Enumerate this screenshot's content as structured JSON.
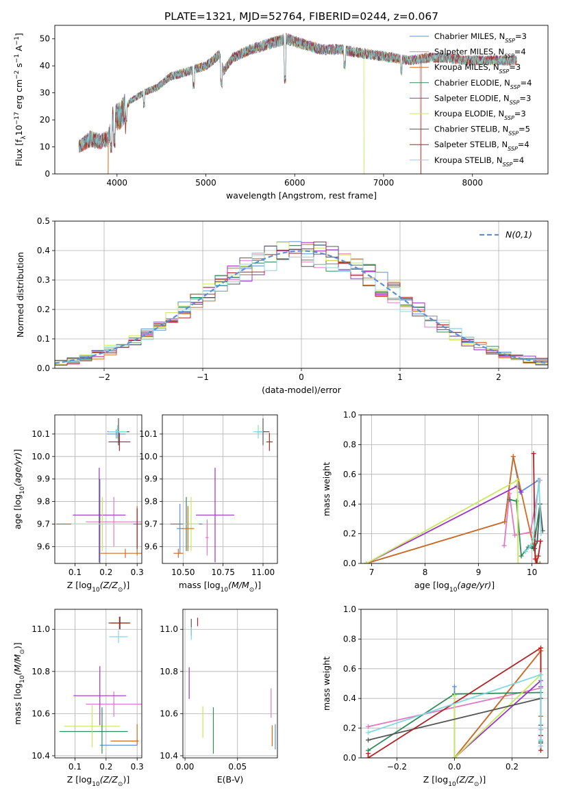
{
  "figure_title": "PLATE=1321, MJD=52764, FIBERID=0244, z=0.067",
  "colors": {
    "c1": "#5a8fd6",
    "c2": "#e377c2",
    "c3": "#d2691e",
    "c4": "#2e8b57",
    "c5": "#9b30c9",
    "c6": "#c7e85a",
    "c7": "#555555",
    "c8": "#b22222",
    "c9": "#80d8e0",
    "gauss": "#5a8fd6"
  },
  "series": [
    {
      "name": "Chabrier MILES",
      "nssp": "3",
      "color": "#5a8fd6"
    },
    {
      "name": "Salpeter MILES",
      "nssp": "4",
      "color": "#e377c2"
    },
    {
      "name": "Kroupa MILES",
      "nssp": "3",
      "color": "#d2691e"
    },
    {
      "name": "Chabrier ELODIE",
      "nssp": "4",
      "color": "#2e8b57"
    },
    {
      "name": "Salpeter ELODIE",
      "nssp": "3",
      "color": "#9b30c9"
    },
    {
      "name": "Kroupa ELODIE",
      "nssp": "3",
      "color": "#c7e85a"
    },
    {
      "name": "Chabrier STELIB",
      "nssp": "5",
      "color": "#555555"
    },
    {
      "name": "Salpeter STELIB",
      "nssp": "4",
      "color": "#b22222"
    },
    {
      "name": "Kroupa STELIB",
      "nssp": "4",
      "color": "#80d8e0"
    }
  ],
  "chart_data": [
    {
      "id": "spectrum",
      "type": "line",
      "xlabel": "wavelength [Angstrom, rest frame]",
      "ylabel": "Flux [f",
      "xlim": [
        3300,
        8850
      ],
      "ylim": [
        0,
        55
      ],
      "xticks": [
        4000,
        5000,
        6000,
        7000,
        8000
      ],
      "yticks": [
        0,
        10,
        20,
        30,
        40,
        50
      ],
      "grid": false,
      "legend": "top-right",
      "continuum": [
        [
          3570,
          10
        ],
        [
          3700,
          13
        ],
        [
          3800,
          12
        ],
        [
          3900,
          13
        ],
        [
          3950,
          20
        ],
        [
          4050,
          22
        ],
        [
          4150,
          27
        ],
        [
          4300,
          30
        ],
        [
          4450,
          32
        ],
        [
          4600,
          36
        ],
        [
          4800,
          38
        ],
        [
          5000,
          40
        ],
        [
          5150,
          44
        ],
        [
          5200,
          38
        ],
        [
          5300,
          43
        ],
        [
          5500,
          46
        ],
        [
          5700,
          48
        ],
        [
          5900,
          50
        ],
        [
          6100,
          48
        ],
        [
          6300,
          46
        ],
        [
          6500,
          46
        ],
        [
          6700,
          45
        ],
        [
          6900,
          44
        ],
        [
          7100,
          43
        ],
        [
          7300,
          42
        ],
        [
          7500,
          43
        ],
        [
          7700,
          43
        ],
        [
          7900,
          42
        ],
        [
          8100,
          42
        ],
        [
          8300,
          42
        ],
        [
          8500,
          42
        ]
      ],
      "dropouts": [
        {
          "series": 2,
          "x": 3900
        },
        {
          "series": 5,
          "x": 6780
        },
        {
          "series": 7,
          "x": 7420
        }
      ]
    },
    {
      "id": "residuals",
      "type": "bar",
      "xlabel": "(data-model)/error",
      "ylabel": "Normed distribution",
      "xlim": [
        -2.5,
        2.5
      ],
      "ylim": [
        0,
        0.5
      ],
      "xticks": [
        -2,
        -1,
        0,
        1,
        2
      ],
      "yticks": [
        0,
        0.1,
        0.2,
        0.3,
        0.4,
        0.5
      ],
      "grid": true,
      "legend": "top-right",
      "gauss_label": "N(0,1)"
    },
    {
      "id": "age_vs_Z",
      "type": "scatter",
      "xlabel": "Z [log",
      "ylabel": "age  [log",
      "xlim": [
        0.035,
        0.315
      ],
      "ylim": [
        9.525,
        10.185
      ],
      "xticks": [
        0.1,
        0.2,
        0.3
      ],
      "yticks": [
        9.6,
        9.7,
        9.8,
        9.9,
        10.0,
        10.1
      ],
      "grid": true,
      "points": [
        {
          "s": 0,
          "x": 0.233,
          "y": 10.1,
          "ex": 0.03,
          "ey": 0.02
        },
        {
          "s": 1,
          "x": 0.225,
          "y": 9.71,
          "ex": 0.09,
          "ey": 0.11
        },
        {
          "s": 2,
          "x": 0.262,
          "y": 9.57,
          "ex": 0.08,
          "ey": 0.02
        },
        {
          "s": 3,
          "x": 0.18,
          "y": 9.7,
          "ex": 0.14,
          "ey": 0.2
        },
        {
          "s": 4,
          "x": 0.178,
          "y": 9.74,
          "ex": 0.085,
          "ey": 0.21
        },
        {
          "s": 5,
          "x": 0.188,
          "y": 9.7,
          "ex": 0.1,
          "ey": 0.12
        },
        {
          "s": 6,
          "x": 0.24,
          "y": 10.11,
          "ex": 0.035,
          "ey": 0.06
        },
        {
          "s": 7,
          "x": 0.243,
          "y": 10.065,
          "ex": 0.035,
          "ey": 0.04
        },
        {
          "s": 8,
          "x": 0.237,
          "y": 10.11,
          "ex": 0.03,
          "ey": 0.03
        },
        {
          "s": 2,
          "x": 0.3,
          "y": 9.67,
          "ex": 0.0,
          "ey": 0.11
        },
        {
          "s": 7,
          "x": 0.3,
          "y": 9.68,
          "ex": 0.0,
          "ey": 0.09
        }
      ]
    },
    {
      "id": "age_vs_mass",
      "type": "scatter",
      "xlabel": "mass [log",
      "ylabel": "",
      "xlim": [
        10.37,
        11.09
      ],
      "ylim": [
        9.525,
        10.185
      ],
      "xticks": [
        10.5,
        10.75,
        11.0
      ],
      "yticks": [
        9.6,
        9.7,
        9.8,
        9.9,
        10.0,
        10.1
      ],
      "grid": true,
      "points": [
        {
          "s": 0,
          "x": 10.48,
          "y": 9.68,
          "ex": 0.02,
          "ey": 0.11
        },
        {
          "s": 1,
          "x": 10.65,
          "y": 9.64,
          "ex": 0.01,
          "ey": 0.08
        },
        {
          "s": 2,
          "x": 10.47,
          "y": 9.57,
          "ex": 0.03,
          "ey": 0.02
        },
        {
          "s": 3,
          "x": 10.52,
          "y": 9.7,
          "ex": 0.1,
          "ey": 0.12
        },
        {
          "s": 4,
          "x": 10.7,
          "y": 9.74,
          "ex": 0.12,
          "ey": 0.21
        },
        {
          "s": 5,
          "x": 10.55,
          "y": 9.7,
          "ex": 0.05,
          "ey": 0.12
        },
        {
          "s": 6,
          "x": 11.0,
          "y": 10.11,
          "ex": 0.04,
          "ey": 0.06
        },
        {
          "s": 7,
          "x": 11.04,
          "y": 10.065,
          "ex": 0.02,
          "ey": 0.04
        },
        {
          "s": 8,
          "x": 10.97,
          "y": 10.11,
          "ex": 0.03,
          "ey": 0.03
        },
        {
          "s": 2,
          "x": 10.53,
          "y": 9.68,
          "ex": 0.04,
          "ey": 0.1
        }
      ]
    },
    {
      "id": "weight_vs_age",
      "type": "line",
      "xlabel": "age  [log",
      "ylabel": "mass weight",
      "xlim": [
        6.8,
        10.3
      ],
      "ylim": [
        0,
        1
      ],
      "xticks": [
        7,
        8,
        9,
        10
      ],
      "yticks": [
        0.0,
        0.2,
        0.4,
        0.6,
        0.8,
        1.0
      ],
      "grid": true,
      "lines": [
        {
          "s": 0,
          "x": [
            6.9,
            9.49,
            9.65,
            9.78,
            10.12
          ],
          "y": [
            0.0,
            0.28,
            0.72,
            0.48,
            0.56
          ]
        },
        {
          "s": 1,
          "x": [
            9.48,
            9.58,
            9.68,
            9.97,
            10.15
          ],
          "y": [
            0.12,
            0.47,
            0.19,
            0.21,
            0.56
          ]
        },
        {
          "s": 2,
          "x": [
            6.9,
            9.49,
            9.65,
            10.1,
            10.15
          ],
          "y": [
            0.0,
            0.28,
            0.72,
            0.0,
            0.0
          ]
        },
        {
          "s": 3,
          "x": [
            9.58,
            9.71,
            9.8,
            9.93,
            10.03,
            10.15
          ],
          "y": [
            0.43,
            0.42,
            0.05,
            0.11,
            0.1,
            0.4
          ]
        },
        {
          "s": 4,
          "x": [
            6.9,
            9.72,
            9.8
          ],
          "y": [
            0.0,
            0.52,
            0.48
          ]
        },
        {
          "s": 5,
          "x": [
            6.9,
            9.73,
            9.74
          ],
          "y": [
            0.0,
            0.56,
            0.0
          ]
        },
        {
          "s": 6,
          "x": [
            9.98,
            10.05,
            10.1,
            10.15,
            10.2
          ],
          "y": [
            0.12,
            0.1,
            0.15,
            0.4,
            0.22
          ]
        },
        {
          "s": 7,
          "x": [
            10.03,
            10.06,
            10.08,
            10.12,
            10.16
          ],
          "y": [
            0.74,
            0.03,
            0.0,
            0.05,
            0.15
          ]
        },
        {
          "s": 8,
          "x": [
            9.88,
            9.98,
            10.03,
            10.13,
            10.17
          ],
          "y": [
            0.08,
            0.12,
            0.17,
            0.56,
            0.2
          ]
        }
      ]
    },
    {
      "id": "mass_vs_Z",
      "type": "scatter",
      "xlabel": "Z [log",
      "ylabel": "mass [log",
      "xlim": [
        0.035,
        0.315
      ],
      "ylim": [
        10.39,
        11.095
      ],
      "xticks": [
        0.1,
        0.2,
        0.3
      ],
      "yticks": [
        10.4,
        10.6,
        10.8,
        11.0
      ],
      "grid": true,
      "points": [
        {
          "s": 0,
          "x": 0.24,
          "y": 10.45,
          "ex": 0.06,
          "ey": 0.0
        },
        {
          "s": 1,
          "x": 0.225,
          "y": 10.645,
          "ex": 0.09,
          "ey": 0.06
        },
        {
          "s": 2,
          "x": 0.3,
          "y": 10.5,
          "ex": 0.0,
          "ey": 0.05
        },
        {
          "s": 3,
          "x": 0.16,
          "y": 10.515,
          "ex": 0.11,
          "ey": 0.0
        },
        {
          "s": 4,
          "x": 0.18,
          "y": 10.685,
          "ex": 0.085,
          "ey": 0.14
        },
        {
          "s": 5,
          "x": 0.155,
          "y": 10.54,
          "ex": 0.09,
          "ey": 0.1
        },
        {
          "s": 6,
          "x": 0.245,
          "y": 11.03,
          "ex": 0.03,
          "ey": 0.03
        },
        {
          "s": 7,
          "x": 0.243,
          "y": 11.03,
          "ex": 0.035,
          "ey": 0.03
        },
        {
          "s": 8,
          "x": 0.24,
          "y": 10.965,
          "ex": 0.03,
          "ey": 0.03
        },
        {
          "s": 2,
          "x": 0.26,
          "y": 10.47,
          "ex": 0.045,
          "ey": 0.0
        },
        {
          "s": 3,
          "x": 0.187,
          "y": 10.52,
          "ex": 0.0,
          "ey": 0.11
        }
      ]
    },
    {
      "id": "mass_vs_ebv",
      "type": "scatter",
      "xlabel": "E(B-V)",
      "ylabel": "",
      "xlim": [
        -0.002,
        0.088
      ],
      "ylim": [
        10.39,
        11.095
      ],
      "xticks": [
        0.0,
        0.05
      ],
      "yticks": [
        10.4,
        10.6,
        10.8,
        11.0
      ],
      "grid": true,
      "points": [
        {
          "s": 0,
          "x": 0.086,
          "y": 10.49,
          "ey": 0.06
        },
        {
          "s": 1,
          "x": 0.082,
          "y": 10.65,
          "ey": 0.07
        },
        {
          "s": 2,
          "x": 0.083,
          "y": 10.495,
          "ey": 0.05
        },
        {
          "s": 3,
          "x": 0.027,
          "y": 10.52,
          "ey": 0.11
        },
        {
          "s": 4,
          "x": 0.004,
          "y": 10.745,
          "ey": 0.075
        },
        {
          "s": 5,
          "x": 0.017,
          "y": 10.56,
          "ey": 0.075
        },
        {
          "s": 6,
          "x": 0.006,
          "y": 11.01,
          "ey": 0.04
        },
        {
          "s": 7,
          "x": 0.012,
          "y": 11.035,
          "ey": 0.02
        },
        {
          "s": 8,
          "x": 0.006,
          "y": 10.98,
          "ey": 0.03
        }
      ]
    },
    {
      "id": "weight_vs_Z",
      "type": "line",
      "xlabel": "Z [log",
      "ylabel": "mass weight",
      "xlim": [
        -0.325,
        0.325
      ],
      "ylim": [
        0,
        1
      ],
      "xticks": [
        -0.2,
        0.0,
        0.2
      ],
      "yticks": [
        0.0,
        0.2,
        0.4,
        0.6,
        0.8,
        1.0
      ],
      "grid": true,
      "lines": [
        {
          "s": 0,
          "x": [
            0.0,
            0.0,
            0.3,
            0.3,
            0.3
          ],
          "y": [
            0.48,
            0.0,
            0.72,
            0.28,
            0.56
          ]
        },
        {
          "s": 1,
          "x": [
            -0.3,
            0.3,
            0.3,
            0.3
          ],
          "y": [
            0.21,
            0.47,
            0.19,
            0.12
          ]
        },
        {
          "s": 2,
          "x": [
            0.0,
            0.3,
            0.3
          ],
          "y": [
            0.0,
            0.72,
            0.28
          ]
        },
        {
          "s": 3,
          "x": [
            -0.3,
            0.0,
            0.3,
            0.3,
            0.3
          ],
          "y": [
            0.05,
            0.43,
            0.44,
            0.11,
            0.1
          ]
        },
        {
          "s": 4,
          "x": [
            0.0,
            0.3,
            0.3
          ],
          "y": [
            0.0,
            0.52,
            0.48
          ]
        },
        {
          "s": 5,
          "x": [
            0.0,
            0.0,
            0.3
          ],
          "y": [
            0.42,
            0.0,
            0.56
          ]
        },
        {
          "s": 6,
          "x": [
            -0.3,
            0.3,
            0.3,
            0.3,
            0.3
          ],
          "y": [
            0.12,
            0.4,
            0.22,
            0.15,
            0.1
          ]
        },
        {
          "s": 7,
          "x": [
            -0.3,
            -0.3,
            0.3,
            0.3,
            0.3
          ],
          "y": [
            0.03,
            0.0,
            0.74,
            0.05,
            0.15
          ]
        },
        {
          "s": 8,
          "x": [
            -0.3,
            0.3,
            0.3,
            0.3,
            0.3
          ],
          "y": [
            0.17,
            0.56,
            0.08,
            0.12,
            0.2
          ]
        }
      ]
    }
  ]
}
